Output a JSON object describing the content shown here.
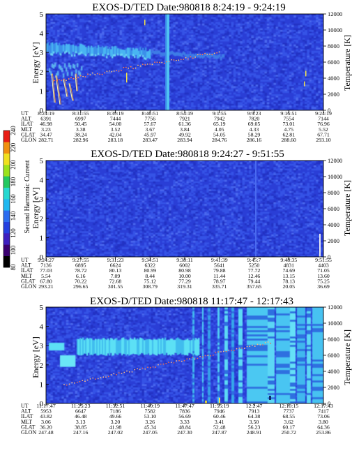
{
  "panels": [
    {
      "title": "EXOS-D/TED   Date:980818   8:24:19 - 9:24:19",
      "regime": "quiet",
      "ylabel_left": "Energy [eV]",
      "ylabel_right": "Temperature [K]",
      "y_ticks": [
        "0",
        "1",
        "2",
        "3",
        "4",
        "5"
      ],
      "temp_ticks": [
        "0",
        "2000",
        "4000",
        "6000",
        "8000",
        "10000",
        "12000"
      ],
      "table": {
        "UT": [
          "8:24:19",
          "8:31:55",
          "8:39:19",
          "8:46:51",
          "8:54:19",
          "9:1:55",
          "9:9:23",
          "9:16:51",
          "9:24:19"
        ],
        "ALT": [
          "6391",
          "6997",
          "7444",
          "7756",
          "7921",
          "7942",
          "7820",
          "7554",
          "7144"
        ],
        "ILAT": [
          "46.98",
          "50.45",
          "54.00",
          "57.67",
          "61.36",
          "65.19",
          "69.05",
          "73.01",
          "76.96"
        ],
        "MLT": [
          "3.23",
          "3.38",
          "3.52",
          "3.67",
          "3.84",
          "4.05",
          "4.33",
          "4.75",
          "5.52"
        ],
        "GLAT": [
          "34.47",
          "38.24",
          "42.04",
          "45.97",
          "49.92",
          "54.05",
          "58.29",
          "62.81",
          "67.71"
        ],
        "GLON": [
          "282.71",
          "282.96",
          "283.18",
          "283.47",
          "283.94",
          "284.76",
          "286.16",
          "288.60",
          "293.10"
        ]
      }
    },
    {
      "title": "EXOS-D/TED   Date:980818   9:24:27 - 9:51:55",
      "regime": "flat",
      "ylabel_left": "Energy [eV]",
      "ylabel_right": "Temperature [K]",
      "y_ticks": [
        "0",
        "1",
        "2",
        "3",
        "4",
        "5"
      ],
      "temp_ticks": [
        "0",
        "2000",
        "4000",
        "6000",
        "8000",
        "10000",
        "12000"
      ],
      "table": {
        "UT": [
          "9:24:27",
          "9:27:55",
          "9:31:23",
          "9:34:51",
          "9:38:11",
          "9:41:39",
          "9:45:7",
          "9:48:35",
          "9:51:55"
        ],
        "ALT": [
          "7136",
          "6895",
          "6624",
          "6322",
          "6002",
          "5641",
          "5250",
          "4831",
          "4403"
        ],
        "ILAT": [
          "77.03",
          "78.72",
          "80.13",
          "80.99",
          "80.98",
          "79.88",
          "77.72",
          "74.69",
          "71.05"
        ],
        "MLT": [
          "5.54",
          "6.16",
          "7.09",
          "8.44",
          "10.00",
          "11.44",
          "12.46",
          "13.15",
          "13.60"
        ],
        "GLAT": [
          "67.80",
          "70.22",
          "72.68",
          "75.12",
          "77.29",
          "78.97",
          "79.44",
          "78.13",
          "75.25"
        ],
        "GLON": [
          "293.21",
          "296.65",
          "301.55",
          "308.79",
          "319.31",
          "335.71",
          "357.65",
          "20.05",
          "36.69"
        ]
      }
    },
    {
      "title": "EXOS-D/TED   Date:980818   11:17:47 - 12:17:43",
      "regime": "active",
      "ylabel_left": "Energy [eV]",
      "ylabel_right": "Temperature [K]",
      "y_ticks": [
        "0",
        "1",
        "2",
        "3",
        "4",
        "5"
      ],
      "temp_ticks": [
        "0",
        "2000",
        "4000",
        "6000",
        "8000",
        "10000",
        "12000"
      ],
      "table": {
        "UT": [
          "11:17:47",
          "11:25:23",
          "11:32:51",
          "11:40:19",
          "11:47:47",
          "11:55:19",
          "12:2:47",
          "12:10:15",
          "12:17:43"
        ],
        "ALT": [
          "5953",
          "6647",
          "7186",
          "7582",
          "7836",
          "7946",
          "7913",
          "7737",
          "7417"
        ],
        "ILAT": [
          "43.82",
          "46.48",
          "49.66",
          "53.10",
          "56.69",
          "60.46",
          "64.38",
          "68.55",
          "73.06"
        ],
        "MLT": [
          "3.06",
          "3.13",
          "3.20",
          "3.26",
          "3.33",
          "3.41",
          "3.50",
          "3.62",
          "3.80"
        ],
        "GLAT": [
          "36.20",
          "38.85",
          "41.98",
          "45.34",
          "48.84",
          "52.48",
          "56.23",
          "60.17",
          "64.36"
        ],
        "GLON": [
          "247.48",
          "247.16",
          "247.02",
          "247.05",
          "247.30",
          "247.87",
          "248.91",
          "250.72",
          "253.86"
        ]
      }
    }
  ],
  "colorbar": {
    "label": "Second Harmonic Current",
    "ticks": [
      "80",
      "100",
      "120",
      "140",
      "160",
      "180",
      "200",
      "220",
      "240"
    ],
    "colors": [
      "#000000",
      "#3a0070",
      "#3d1fbf",
      "#2540e0",
      "#2d6df0",
      "#1fb8f0",
      "#25d8d0",
      "#22c860",
      "#9be21c",
      "#f0e020",
      "#f09010",
      "#e81c14"
    ]
  },
  "chart_data": [
    {
      "type": "heatmap",
      "title": "EXOS-D/TED   Date:980818   8:24:19 - 9:24:19",
      "xlabel": "UT",
      "x": [
        "8:24:19",
        "8:31:55",
        "8:39:19",
        "8:46:51",
        "8:54:19",
        "9:1:55",
        "9:9:23",
        "9:16:51",
        "9:24:19"
      ],
      "ylabel": "Energy [eV]",
      "ylim": [
        0,
        5
      ],
      "y2label": "Temperature [K]",
      "y2lim": [
        0,
        12000
      ],
      "colorbar_range": [
        80,
        240
      ]
    },
    {
      "type": "heatmap",
      "title": "EXOS-D/TED   Date:980818   9:24:27 - 9:51:55",
      "xlabel": "UT",
      "x": [
        "9:24:27",
        "9:27:55",
        "9:31:23",
        "9:34:51",
        "9:38:11",
        "9:41:39",
        "9:45:7",
        "9:48:35",
        "9:51:55"
      ],
      "ylabel": "Energy [eV]",
      "ylim": [
        0,
        5
      ],
      "y2label": "Temperature [K]",
      "y2lim": [
        0,
        12000
      ],
      "colorbar_range": [
        80,
        240
      ]
    },
    {
      "type": "heatmap",
      "title": "EXOS-D/TED   Date:980818   11:17:47 - 12:17:43",
      "xlabel": "UT",
      "x": [
        "11:17:47",
        "11:25:23",
        "11:32:51",
        "11:40:19",
        "11:47:47",
        "11:55:19",
        "12:2:47",
        "12:10:15",
        "12:17:43"
      ],
      "ylabel": "Energy [eV]",
      "ylim": [
        0,
        5
      ],
      "y2label": "Temperature [K]",
      "y2lim": [
        0,
        12000
      ],
      "colorbar_range": [
        80,
        240
      ]
    }
  ]
}
